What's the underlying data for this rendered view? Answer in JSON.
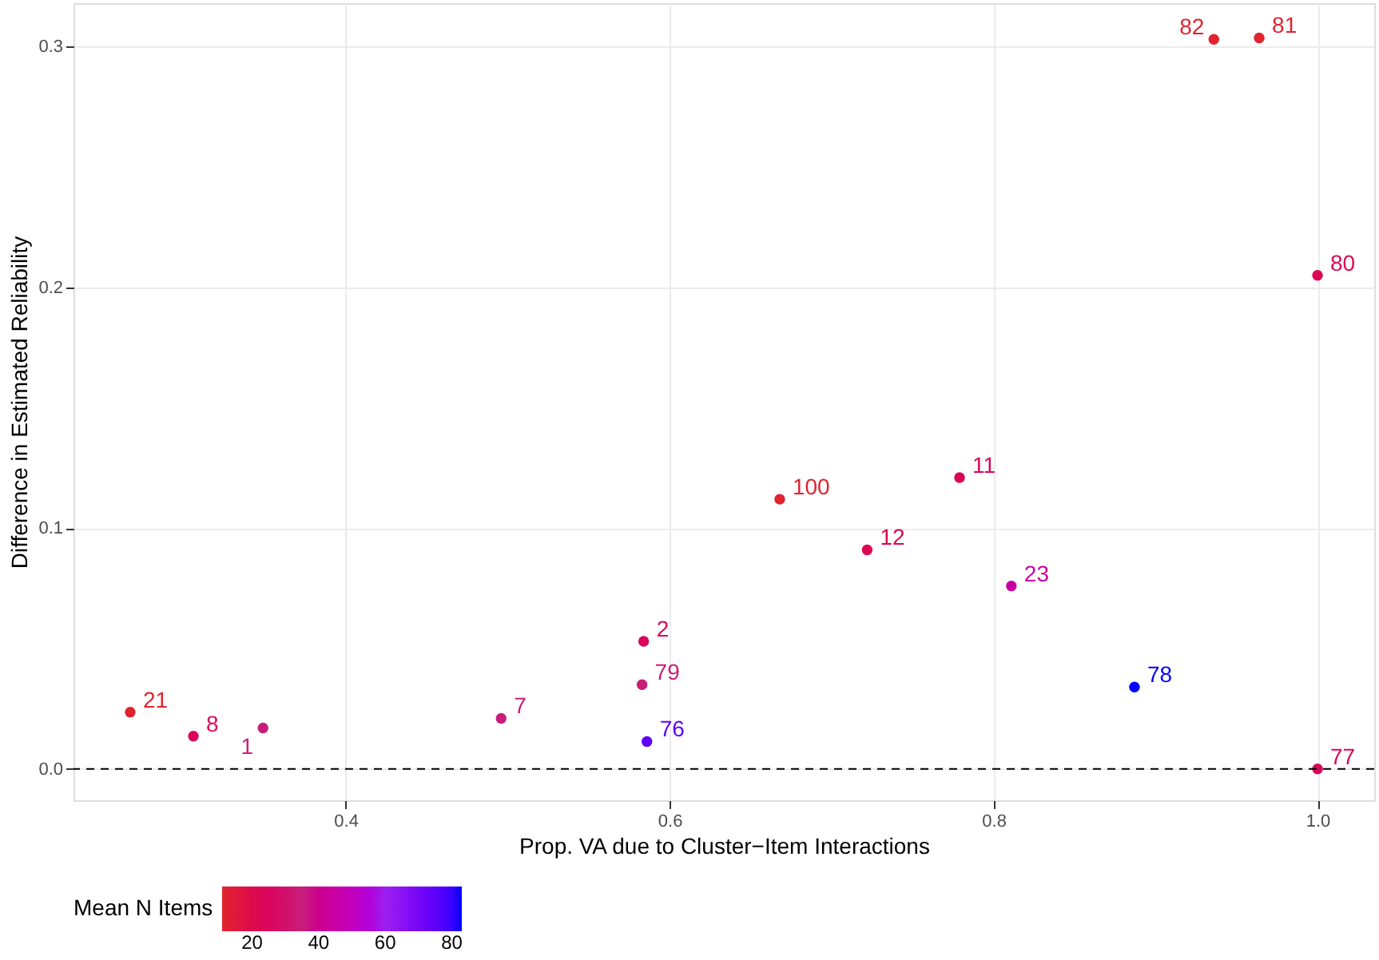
{
  "chart_data": {
    "type": "scatter",
    "xlabel": "Prop. VA due to Cluster−Item Interactions",
    "ylabel": "Difference in Estimated Reliability",
    "clabel": "Mean N Items",
    "x": [
      0.267,
      0.306,
      0.349,
      0.496,
      0.583,
      0.584,
      0.586,
      0.668,
      0.722,
      0.779,
      0.811,
      0.887,
      0.936,
      0.964,
      1.0,
      1.0
    ],
    "values": [
      0.0236,
      0.0136,
      0.017,
      0.021,
      0.035,
      0.053,
      0.0114,
      0.112,
      0.091,
      0.121,
      0.076,
      0.034,
      0.303,
      0.3036,
      0.205,
      0.0
    ],
    "cvalues": [
      12,
      25,
      35,
      35,
      35,
      24,
      75,
      12,
      22,
      24,
      45,
      83,
      12,
      12,
      22,
      24
    ],
    "clim": [
      11,
      83
    ],
    "cticks": [
      20,
      40,
      60,
      80
    ],
    "xlim": [
      0.232,
      1.035
    ],
    "xticks": [
      {
        "value": 0.4,
        "label": "0.4"
      },
      {
        "value": 0.6,
        "label": "0.6"
      },
      {
        "value": 0.8,
        "label": "0.8"
      },
      {
        "value": 1.0,
        "label": "1.0"
      }
    ],
    "ylim": [
      -0.013,
      0.318
    ],
    "yticks": [
      {
        "value": 0,
        "label": "0.0"
      },
      {
        "value": 0.1,
        "label": "0.1"
      },
      {
        "value": 0.2,
        "label": "0.2"
      },
      {
        "value": 0.3,
        "label": "0.3"
      }
    ],
    "ref_lines": [
      {
        "axis": "y",
        "value": 0,
        "line_style": "dashed",
        "color": "#000000"
      }
    ],
    "annotations": [
      {
        "text": "21",
        "x": 0.267,
        "y": 0.0236
      },
      {
        "text": "8",
        "x": 0.306,
        "y": 0.0136
      },
      {
        "text": "1",
        "x": 0.349,
        "y": 0.017
      },
      {
        "text": "7",
        "x": 0.496,
        "y": 0.021
      },
      {
        "text": "79",
        "x": 0.583,
        "y": 0.035
      },
      {
        "text": "2",
        "x": 0.584,
        "y": 0.053
      },
      {
        "text": "76",
        "x": 0.586,
        "y": 0.0114
      },
      {
        "text": "100",
        "x": 0.668,
        "y": 0.112
      },
      {
        "text": "12",
        "x": 0.722,
        "y": 0.091
      },
      {
        "text": "11",
        "x": 0.779,
        "y": 0.121
      },
      {
        "text": "23",
        "x": 0.811,
        "y": 0.076
      },
      {
        "text": "78",
        "x": 0.887,
        "y": 0.034
      },
      {
        "text": "82",
        "x": 0.936,
        "y": 0.303
      },
      {
        "text": "81",
        "x": 0.964,
        "y": 0.3036
      },
      {
        "text": "80",
        "x": 1.0,
        "y": 0.205
      },
      {
        "text": "77",
        "x": 1.0,
        "y": 0.0
      }
    ],
    "grid": true,
    "marker": "circle"
  }
}
